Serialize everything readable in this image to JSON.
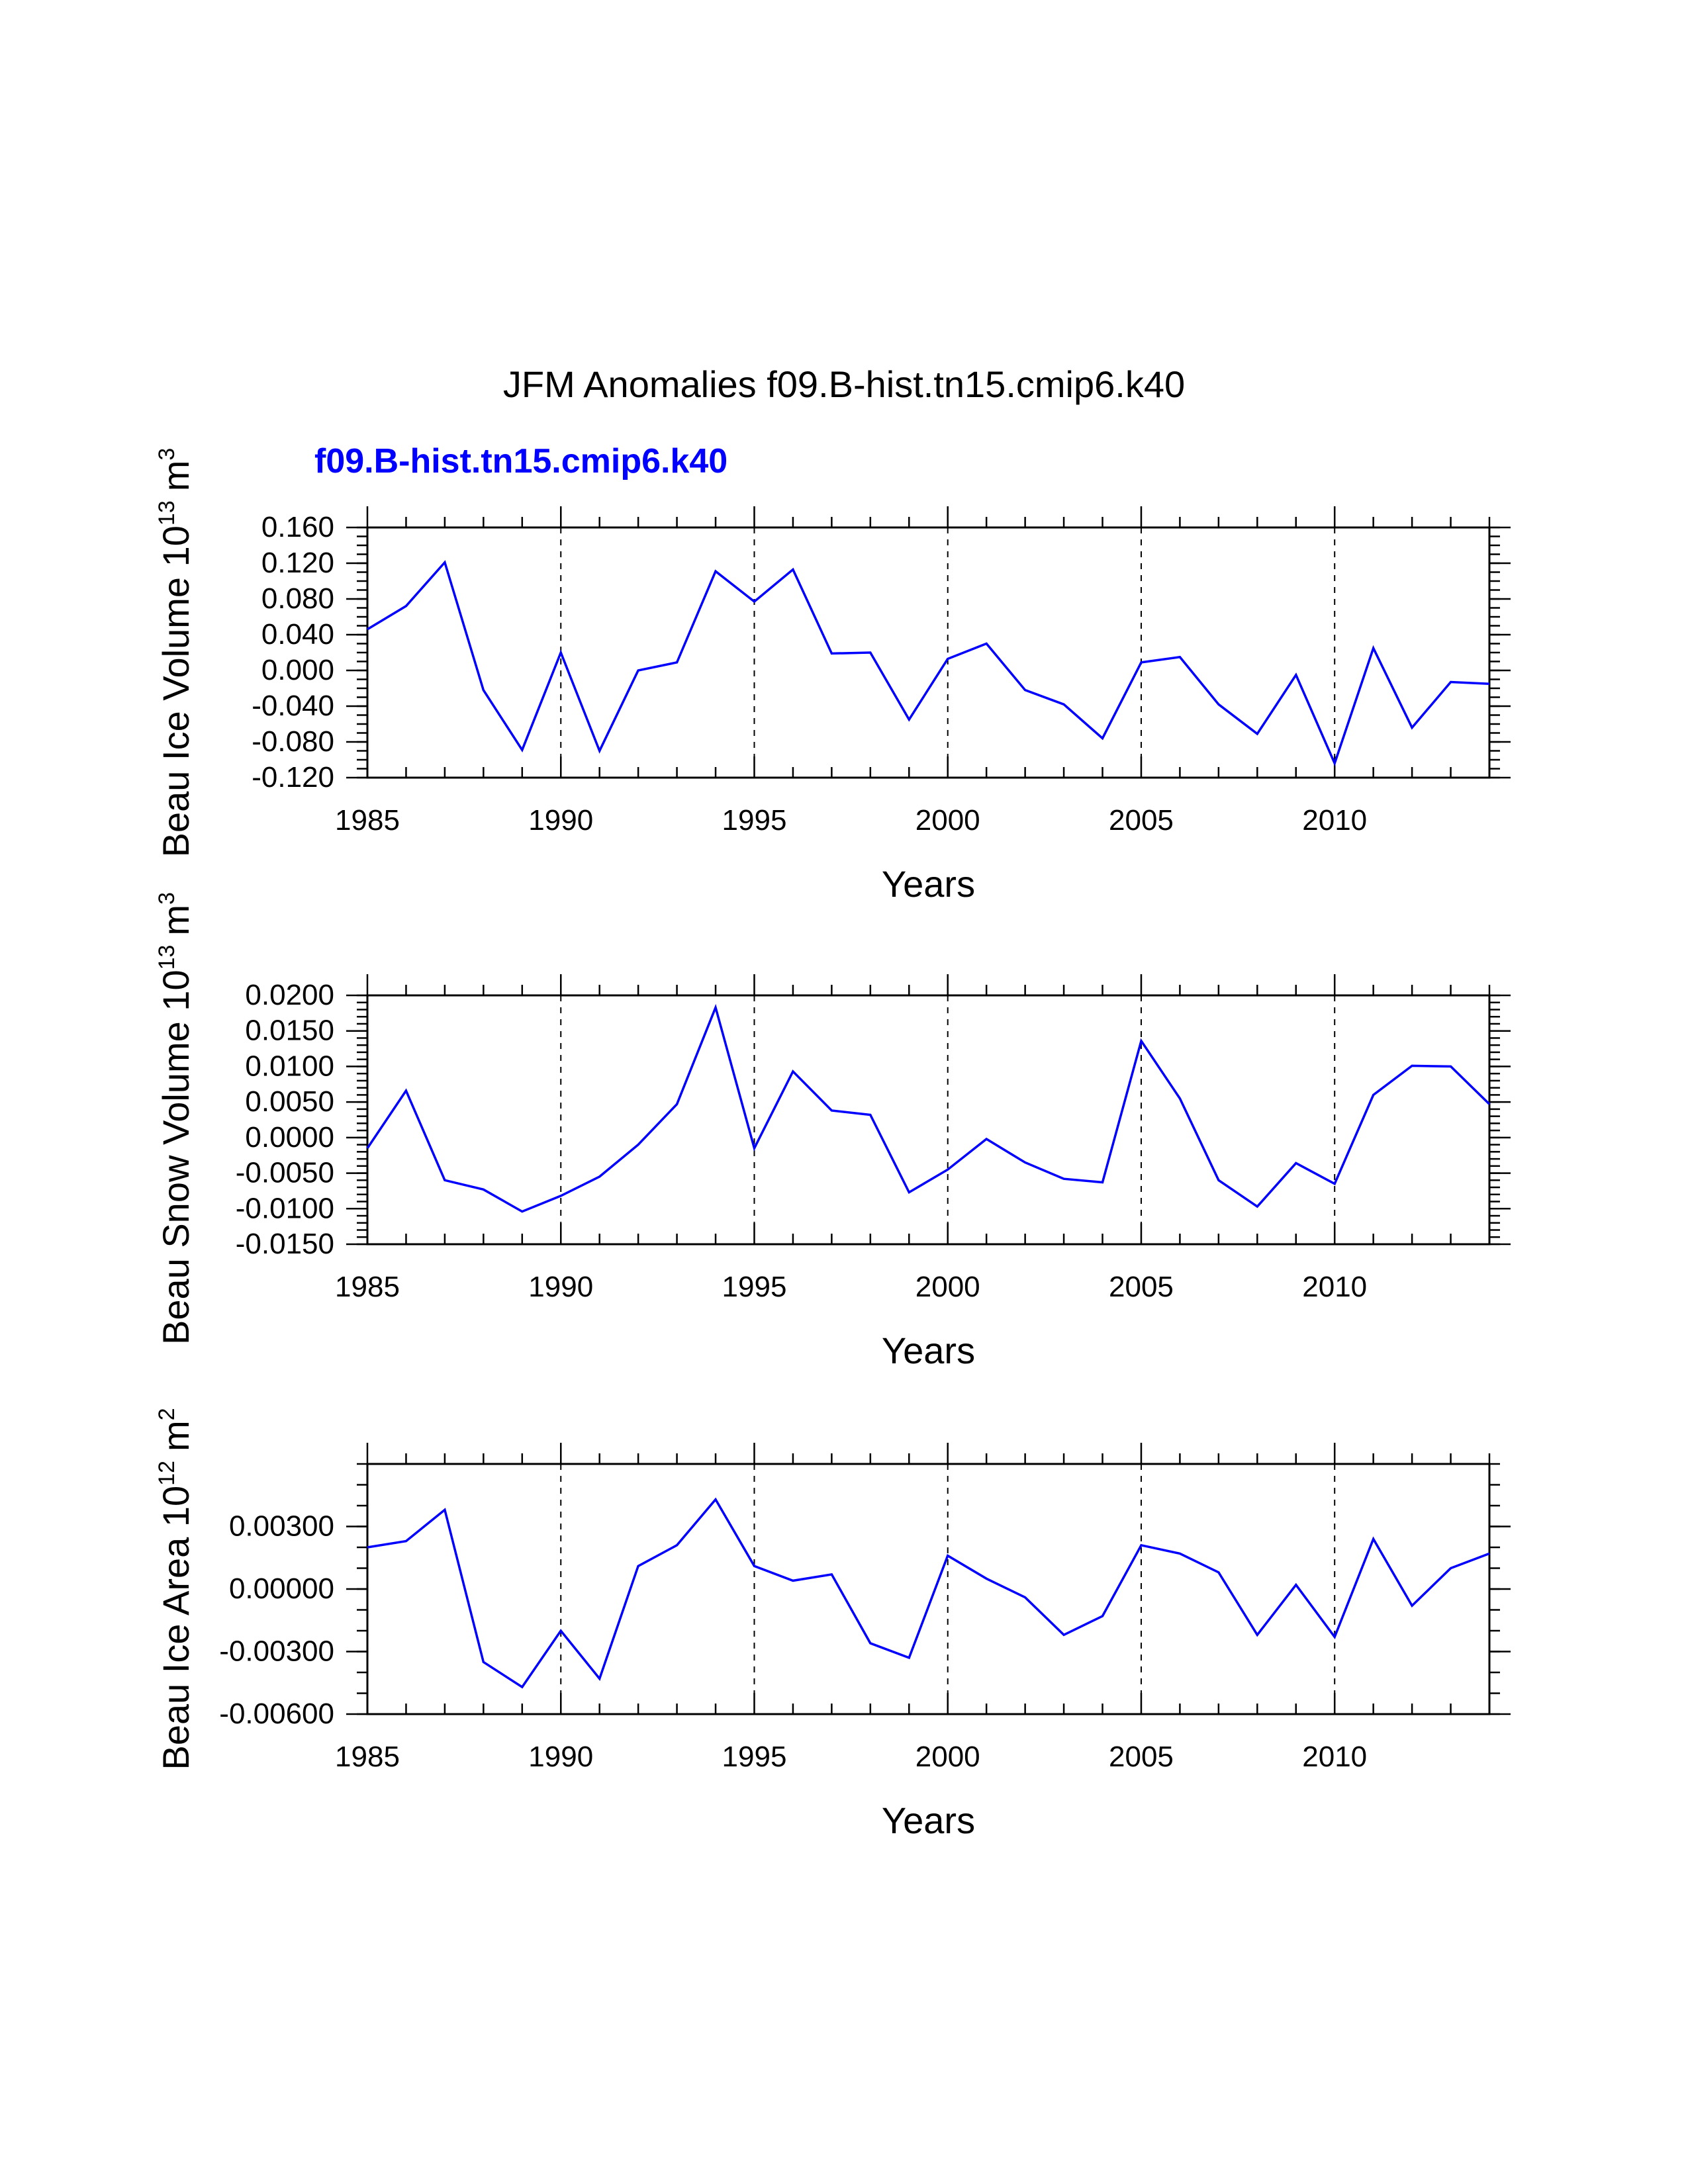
{
  "figure": {
    "title": "JFM Anomalies f09.B-hist.tn15.cmip6.k40",
    "legend_label": "f09.B-hist.tn15.cmip6.k40",
    "line_color": "#0000ff",
    "axis_color": "#000000"
  },
  "chart_data": [
    {
      "type": "line",
      "id": "ice-volume",
      "ylabel_main": "Beau Ice Volume 10",
      "ylabel_sup": "13",
      "ylabel_unit": "m",
      "ylabel_unit_sup": "3",
      "xlabel": "Years",
      "xlim": [
        1985,
        2014
      ],
      "ylim": [
        -0.12,
        0.16
      ],
      "x_ticks": [
        1985,
        1990,
        1995,
        2000,
        2005,
        2010
      ],
      "x_tick_labels": [
        "1985",
        "1990",
        "1995",
        "2000",
        "2005",
        "2010"
      ],
      "y_ticks": [
        -0.12,
        -0.08,
        -0.04,
        0.0,
        0.04,
        0.08,
        0.12,
        0.16
      ],
      "y_tick_labels": [
        "-0.120",
        "-0.080",
        "-0.040",
        "0.000",
        "0.040",
        "0.080",
        "0.120",
        "0.160"
      ],
      "y_tick_labels_major": [
        0.16,
        0.12,
        0.08,
        0.04,
        0.0,
        -0.04,
        -0.08,
        -0.12
      ],
      "y_minor_step": 0.01,
      "gridlines_x": [
        1990,
        1995,
        2000,
        2005,
        2010
      ],
      "series": [
        {
          "name": "f09.B-hist.tn15.cmip6.k40",
          "x": [
            1985,
            1986,
            1987,
            1988,
            1989,
            1990,
            1991,
            1992,
            1993,
            1994,
            1995,
            1996,
            1997,
            1998,
            1999,
            2000,
            2001,
            2002,
            2003,
            2004,
            2005,
            2006,
            2007,
            2008,
            2009,
            2010,
            2011,
            2012,
            2013,
            2014
          ],
          "values": [
            0.046,
            0.072,
            0.121,
            -0.022,
            -0.089,
            0.02,
            -0.09,
            0.0,
            0.009,
            0.111,
            0.077,
            0.113,
            0.019,
            0.02,
            -0.055,
            0.013,
            0.03,
            -0.022,
            -0.038,
            -0.076,
            0.009,
            0.015,
            -0.038,
            -0.071,
            -0.005,
            -0.104,
            0.025,
            -0.064,
            -0.013,
            -0.015
          ]
        }
      ]
    },
    {
      "type": "line",
      "id": "snow-volume",
      "ylabel_main": "Beau Snow Volume 10",
      "ylabel_sup": "13",
      "ylabel_unit": "m",
      "ylabel_unit_sup": "3",
      "xlabel": "Years",
      "xlim": [
        1985,
        2014
      ],
      "ylim": [
        -0.015,
        0.02
      ],
      "x_ticks": [
        1985,
        1990,
        1995,
        2000,
        2005,
        2010
      ],
      "x_tick_labels": [
        "1985",
        "1990",
        "1995",
        "2000",
        "2005",
        "2010"
      ],
      "y_ticks": [
        -0.015,
        -0.01,
        -0.005,
        0.0,
        0.005,
        0.01,
        0.015,
        0.02
      ],
      "y_tick_labels": [
        "-0.0150",
        "-0.0100",
        "-0.0050",
        "0.0000",
        "0.0050",
        "0.0100",
        "0.0150",
        "0.0200"
      ],
      "y_minor_step": 0.001,
      "gridlines_x": [
        1990,
        1995,
        2000,
        2005,
        2010
      ],
      "series": [
        {
          "name": "f09.B-hist.tn15.cmip6.k40",
          "x": [
            1985,
            1986,
            1987,
            1988,
            1989,
            1990,
            1991,
            1992,
            1993,
            1994,
            1995,
            1996,
            1997,
            1998,
            1999,
            2000,
            2001,
            2002,
            2003,
            2004,
            2005,
            2006,
            2007,
            2008,
            2009,
            2010,
            2011,
            2012,
            2013,
            2014
          ],
          "values": [
            -0.0015,
            0.0066,
            -0.006,
            -0.0073,
            -0.0104,
            -0.0082,
            -0.0055,
            -0.001,
            0.0047,
            0.0183,
            -0.0015,
            0.0093,
            0.0038,
            0.0032,
            -0.0077,
            -0.0045,
            -0.0002,
            -0.0035,
            -0.0058,
            -0.0063,
            0.0136,
            0.0055,
            -0.006,
            -0.0097,
            -0.0036,
            -0.0065,
            0.006,
            0.0101,
            0.01,
            0.0047
          ]
        }
      ]
    },
    {
      "type": "line",
      "id": "ice-area",
      "ylabel_main": "Beau Ice Area 10",
      "ylabel_sup": "12",
      "ylabel_unit": "m",
      "ylabel_unit_sup": "2",
      "xlabel": "Years",
      "xlim": [
        1985,
        2014
      ],
      "ylim": [
        -0.006,
        0.006
      ],
      "x_ticks": [
        1985,
        1990,
        1995,
        2000,
        2005,
        2010
      ],
      "x_tick_labels": [
        "1985",
        "1990",
        "1995",
        "2000",
        "2005",
        "2010"
      ],
      "y_ticks": [
        -0.006,
        -0.003,
        0.0,
        0.003
      ],
      "y_tick_labels": [
        "-0.00600",
        "-0.00300",
        "0.00000",
        "0.00300"
      ],
      "y_minor_step": 0.001,
      "gridlines_x": [
        1990,
        1995,
        2000,
        2005,
        2010
      ],
      "series": [
        {
          "name": "f09.B-hist.tn15.cmip6.k40",
          "x": [
            1985,
            1986,
            1987,
            1988,
            1989,
            1990,
            1991,
            1992,
            1993,
            1994,
            1995,
            1996,
            1997,
            1998,
            1999,
            2000,
            2001,
            2002,
            2003,
            2004,
            2005,
            2006,
            2007,
            2008,
            2009,
            2010,
            2011,
            2012,
            2013,
            2014
          ],
          "values": [
            0.002,
            0.0023,
            0.0038,
            -0.0035,
            -0.0047,
            -0.002,
            -0.0043,
            0.0011,
            0.0021,
            0.0043,
            0.0011,
            0.0004,
            0.0007,
            -0.0026,
            -0.0033,
            0.0016,
            0.0005,
            -0.0004,
            -0.0022,
            -0.0013,
            0.0021,
            0.0017,
            0.0008,
            -0.0022,
            0.0002,
            -0.0023,
            0.0024,
            -0.0008,
            0.001,
            0.0017
          ]
        }
      ]
    }
  ]
}
